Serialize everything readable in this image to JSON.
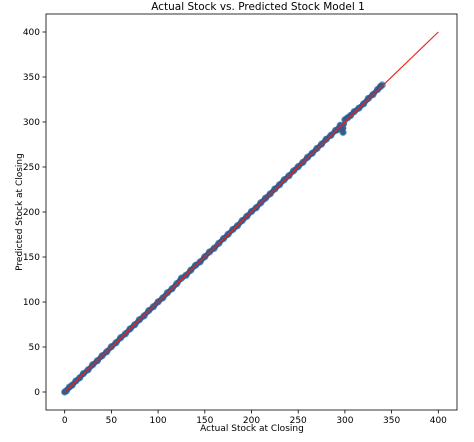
{
  "chart_data": {
    "type": "scatter",
    "title": "Actual Stock vs. Predicted Stock Model 1",
    "xlabel": "Actual Stock at Closing",
    "ylabel": "Predicted Stock at Closing",
    "xlim": [
      -20,
      420
    ],
    "ylim": [
      -20,
      420
    ],
    "x_ticks": [
      0,
      50,
      100,
      150,
      200,
      250,
      300,
      350,
      400
    ],
    "y_ticks": [
      0,
      50,
      100,
      150,
      200,
      250,
      300,
      350,
      400
    ],
    "grid": false,
    "colors": {
      "scatter_outer": "#1f77b4",
      "scatter_inner": "#38598b",
      "reference_line": "#e8261c"
    },
    "reference_line": {
      "label": "",
      "x": [
        0,
        400
      ],
      "y": [
        0,
        400
      ]
    },
    "series": [
      {
        "name": "",
        "points": [
          [
            0,
            0
          ],
          [
            2,
            1.5
          ],
          [
            5,
            5.4
          ],
          [
            8,
            7.6
          ],
          [
            12,
            12.3
          ],
          [
            16,
            15.7
          ],
          [
            20,
            20.4
          ],
          [
            25,
            24.6
          ],
          [
            30,
            30.3
          ],
          [
            35,
            34.8
          ],
          [
            40,
            40.2
          ],
          [
            45,
            44.7
          ],
          [
            50,
            50.3
          ],
          [
            55,
            54.8
          ],
          [
            60,
            60.4
          ],
          [
            65,
            64.7
          ],
          [
            70,
            70.2
          ],
          [
            75,
            74.8
          ],
          [
            80,
            80.3
          ],
          [
            85,
            84.6
          ],
          [
            90,
            90.4
          ],
          [
            95,
            94.8
          ],
          [
            100,
            100.2
          ],
          [
            105,
            104.6
          ],
          [
            110,
            110.3
          ],
          [
            115,
            114.8
          ],
          [
            120,
            120.4
          ],
          [
            125,
            126.5
          ],
          [
            130,
            129.8
          ],
          [
            135,
            135.3
          ],
          [
            140,
            140.7
          ],
          [
            145,
            144.6
          ],
          [
            150,
            150.3
          ],
          [
            155,
            155.6
          ],
          [
            160,
            159.7
          ],
          [
            165,
            165.2
          ],
          [
            170,
            170.5
          ],
          [
            175,
            175.3
          ],
          [
            180,
            180.6
          ],
          [
            185,
            184.8
          ],
          [
            190,
            190.4
          ],
          [
            195,
            195.2
          ],
          [
            200,
            200.6
          ],
          [
            205,
            204.7
          ],
          [
            210,
            210.3
          ],
          [
            215,
            215.4
          ],
          [
            220,
            220.2
          ],
          [
            225,
            225.6
          ],
          [
            230,
            230.3
          ],
          [
            235,
            235.8
          ],
          [
            240,
            240.2
          ],
          [
            245,
            245.7
          ],
          [
            250,
            250.4
          ],
          [
            255,
            255.2
          ],
          [
            260,
            260.8
          ],
          [
            265,
            265.3
          ],
          [
            270,
            270.6
          ],
          [
            275,
            275.4
          ],
          [
            280,
            280.9
          ],
          [
            285,
            285.2
          ],
          [
            290,
            290.6
          ],
          [
            292,
            291.5
          ],
          [
            295,
            296.4
          ],
          [
            298,
            288.5
          ],
          [
            300,
            302.5
          ],
          [
            303,
            304.8
          ],
          [
            306,
            307.2
          ],
          [
            310,
            311.6
          ],
          [
            315,
            315.4
          ],
          [
            320,
            320.2
          ],
          [
            325,
            326.1
          ],
          [
            330,
            330.5
          ],
          [
            335,
            336.2
          ],
          [
            338,
            339.4
          ],
          [
            340,
            341.2
          ]
        ]
      }
    ]
  }
}
